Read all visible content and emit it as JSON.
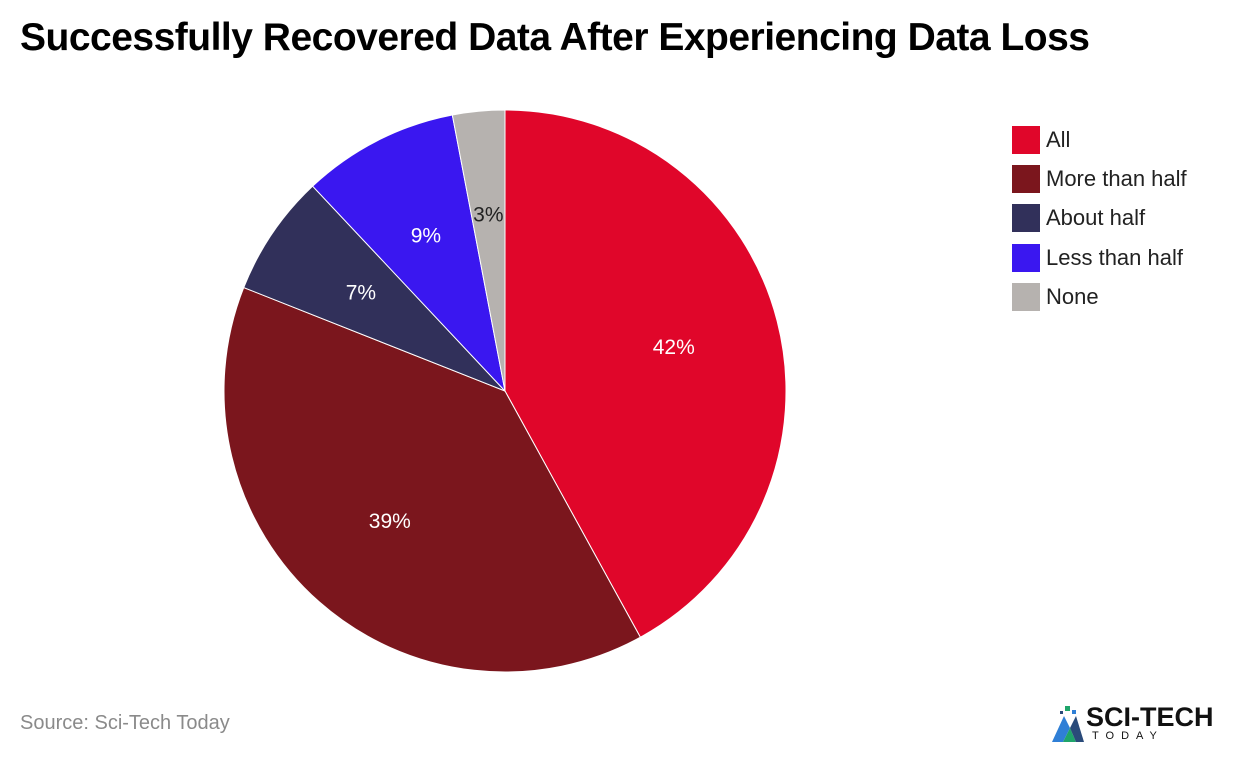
{
  "chart_data": {
    "type": "pie",
    "title": "Successfully Recovered Data After Experiencing Data Loss",
    "categories": [
      "All",
      "More than half",
      "About half",
      "Less than half",
      "None"
    ],
    "values": [
      42,
      39,
      7,
      9,
      3
    ],
    "value_labels": [
      "42%",
      "39%",
      "7%",
      "9%",
      "3%"
    ],
    "colors": [
      "#e0062a",
      "#7b161d",
      "#31305a",
      "#3a17f0",
      "#b6b2af"
    ],
    "label_colors": [
      "#ffffff",
      "#ffffff",
      "#ffffff",
      "#ffffff",
      "#222222"
    ],
    "legend_position": "top-right",
    "start_angle_deg": 0,
    "direction": "clockwise"
  },
  "footer": {
    "source": "Source: Sci-Tech Today",
    "brand_name": "SCI-TECH",
    "brand_sub": "TODAY",
    "brand_logo_icon": "sci-tech-logo-icon"
  }
}
